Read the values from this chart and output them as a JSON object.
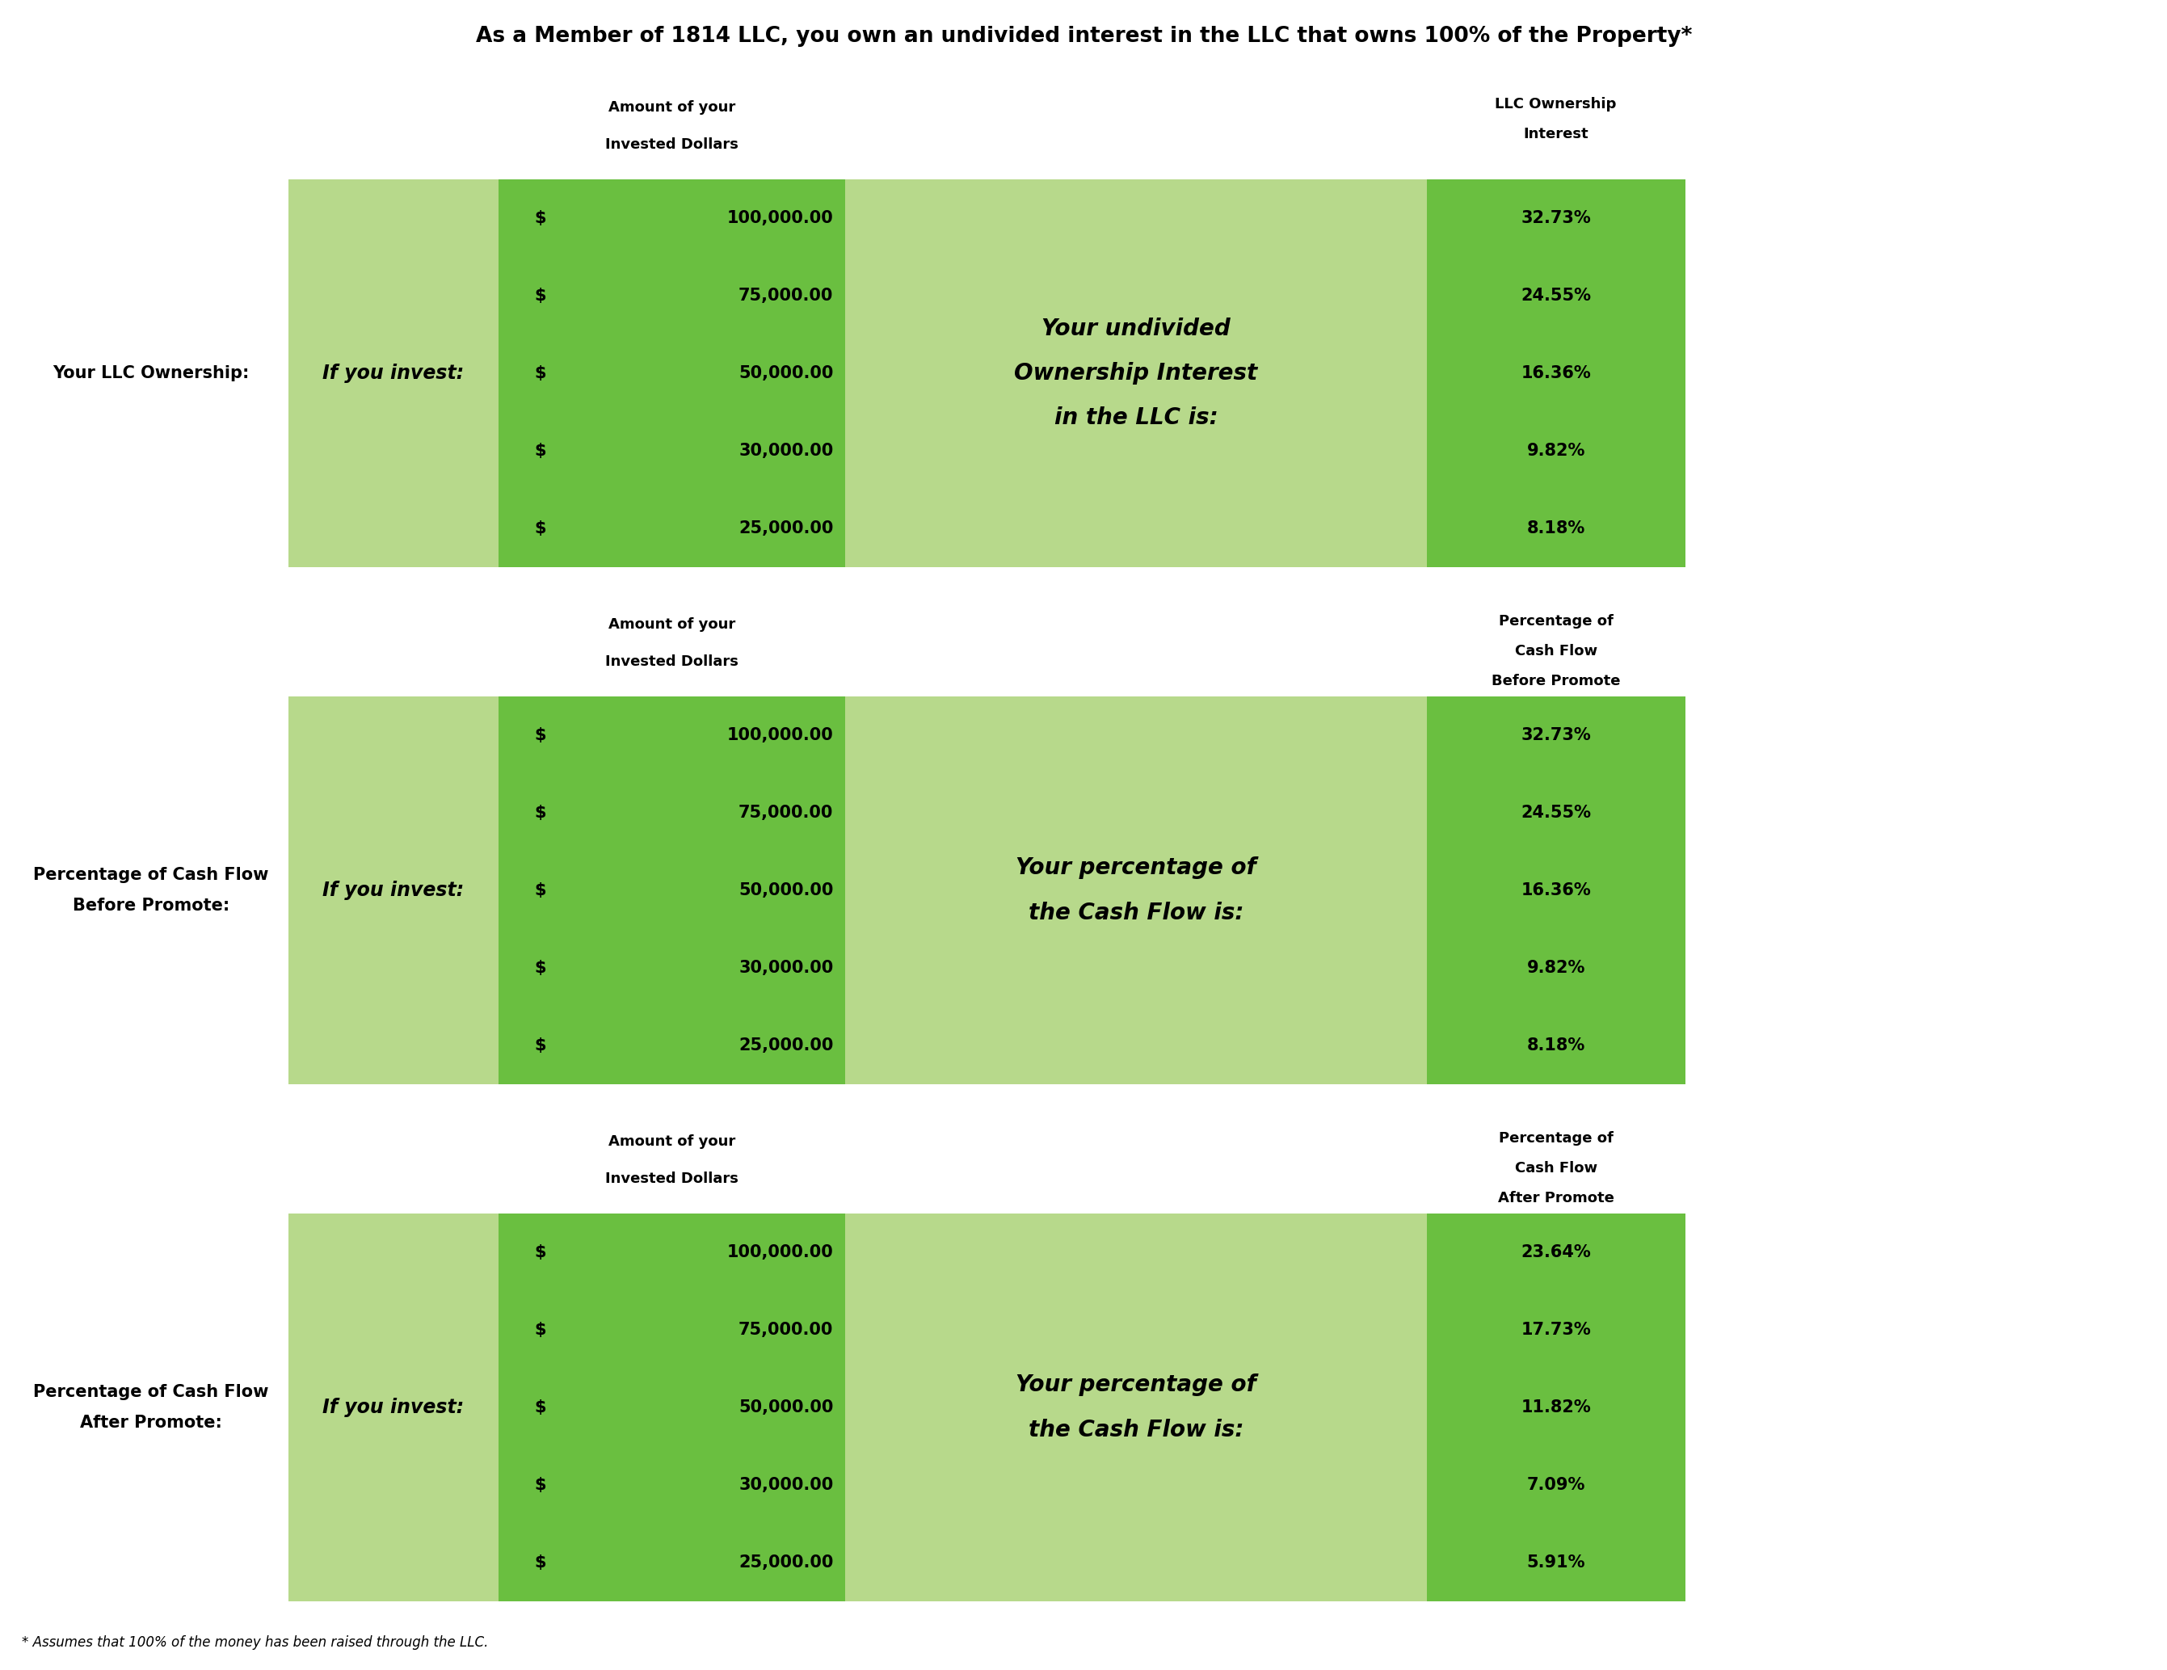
{
  "title": "As a Member of 1814 LLC, you own an undivided interest in the LLC that owns 100% of the Property*",
  "footnote": "* Assumes that 100% of the money has been raised through the LLC.",
  "bg_color": "#ffffff",
  "light_green": "#b7d98b",
  "dark_green": "#6abf40",
  "sections": [
    {
      "left_label": "Your LLC Ownership:",
      "col2_header_line1": "Amount of your",
      "col2_header_line2": "Invested Dollars",
      "col4_header_lines": [
        "LLC Ownership",
        "Interest"
      ],
      "col3_text_lines": [
        "Your undivided",
        "Ownership Interest",
        "in the LLC is:"
      ],
      "investments": [
        "$ 100,000.00",
        "$ 75,000.00",
        "$ 50,000.00",
        "$ 30,000.00",
        "$ 25,000.00"
      ],
      "percentages": [
        "32.73%",
        "24.55%",
        "16.36%",
        "9.82%",
        "8.18%"
      ]
    },
    {
      "left_label": "Percentage of Cash Flow\nBefore Promote:",
      "col2_header_line1": "Amount of your",
      "col2_header_line2": "Invested Dollars",
      "col4_header_lines": [
        "Percentage of",
        "Cash Flow",
        "Before Promote"
      ],
      "col3_text_lines": [
        "Your percentage of",
        "the Cash Flow is:"
      ],
      "investments": [
        "$ 100,000.00",
        "$ 75,000.00",
        "$ 50,000.00",
        "$ 30,000.00",
        "$ 25,000.00"
      ],
      "percentages": [
        "32.73%",
        "24.55%",
        "16.36%",
        "9.82%",
        "8.18%"
      ]
    },
    {
      "left_label": "Percentage of Cash Flow\nAfter Promote:",
      "col2_header_line1": "Amount of your",
      "col2_header_line2": "Invested Dollars",
      "col4_header_lines": [
        "Percentage of",
        "Cash Flow",
        "After Promote"
      ],
      "col3_text_lines": [
        "Your percentage of",
        "the Cash Flow is:"
      ],
      "investments": [
        "$ 100,000.00",
        "$ 75,000.00",
        "$ 50,000.00",
        "$ 30,000.00",
        "$ 25,000.00"
      ],
      "percentages": [
        "23.64%",
        "17.73%",
        "11.82%",
        "7.09%",
        "5.91%"
      ]
    }
  ]
}
